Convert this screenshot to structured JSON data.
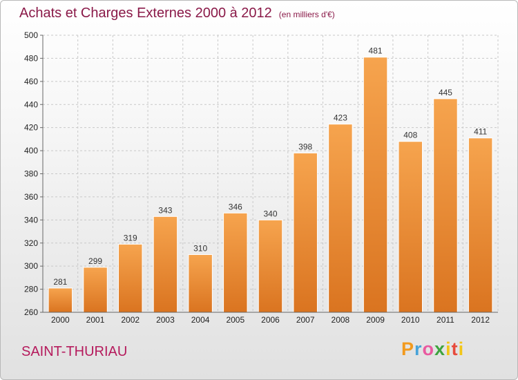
{
  "header": {
    "title": "Achats et Charges Externes 2000 à 2012",
    "unit": "(en milliers d'€)"
  },
  "commune": "SAINT-THURIAU",
  "logo": {
    "text": "Proxiti"
  },
  "colors": {
    "bar_light": "#f6a44e",
    "bar_dark": "#da7420",
    "grid": "#c8c8c8",
    "title": "#8a1948",
    "commune": "#b51a5c"
  },
  "chart_data": {
    "type": "bar",
    "title": "Achats et Charges Externes 2000 à 2012",
    "subtitle": "(en milliers d'€)",
    "xlabel": "",
    "ylabel": "",
    "categories": [
      "2000",
      "2001",
      "2002",
      "2003",
      "2004",
      "2005",
      "2006",
      "2007",
      "2008",
      "2009",
      "2010",
      "2011",
      "2012"
    ],
    "values": [
      281,
      299,
      319,
      343,
      310,
      346,
      340,
      398,
      423,
      481,
      408,
      445,
      411
    ],
    "ylim": [
      260,
      500
    ],
    "yticks": [
      260,
      280,
      300,
      320,
      340,
      360,
      380,
      400,
      420,
      440,
      460,
      480,
      500
    ],
    "grid": "horizontal dashed",
    "legend": "none"
  }
}
